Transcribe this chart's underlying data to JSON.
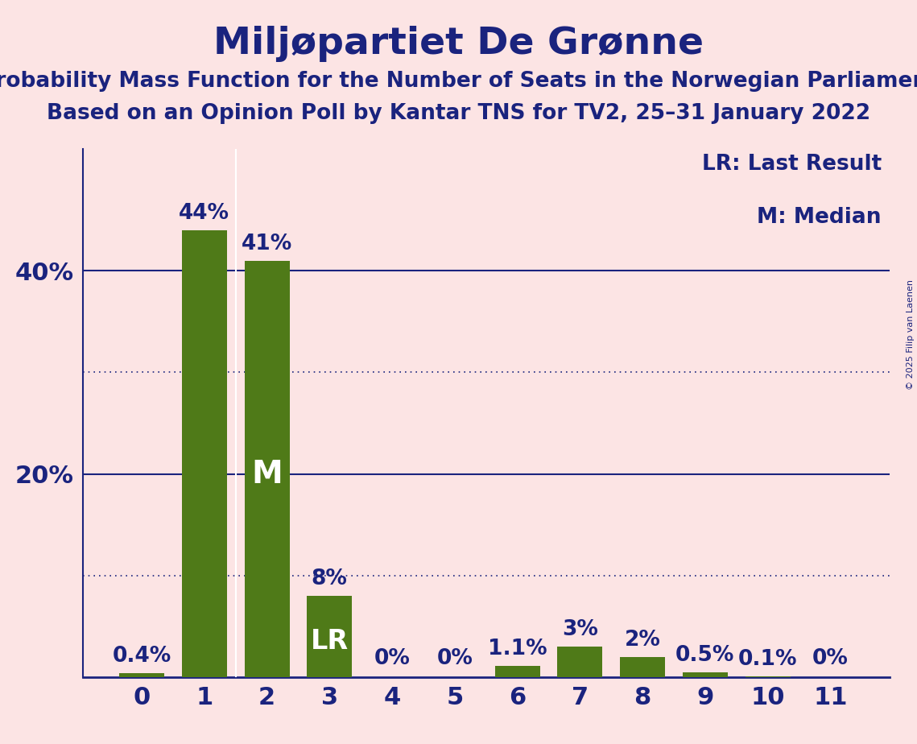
{
  "title": "Miljøpartiet De Grønne",
  "subtitle1": "Probability Mass Function for the Number of Seats in the Norwegian Parliament",
  "subtitle2": "Based on an Opinion Poll by Kantar TNS for TV2, 25–31 January 2022",
  "copyright": "© 2025 Filip van Laenen",
  "categories": [
    0,
    1,
    2,
    3,
    4,
    5,
    6,
    7,
    8,
    9,
    10,
    11
  ],
  "values": [
    0.4,
    44,
    41,
    8,
    0,
    0,
    1.1,
    3,
    2,
    0.5,
    0.1,
    0
  ],
  "labels": [
    "0.4%",
    "44%",
    "41%",
    "8%",
    "0%",
    "0%",
    "1.1%",
    "3%",
    "2%",
    "0.5%",
    "0.1%",
    "0%"
  ],
  "bar_color": "#4f7a18",
  "median_bar": 2,
  "lr_bar": 3,
  "median_label": "M",
  "lr_label": "LR",
  "background_color": "#fce4e4",
  "axis_color": "#1a237e",
  "text_color": "#1a237e",
  "title_fontsize": 34,
  "subtitle_fontsize": 19,
  "tick_fontsize": 22,
  "label_fontsize": 19,
  "yticks": [
    20,
    40
  ],
  "ytick_labels": [
    "20%",
    "40%"
  ],
  "ylim": [
    0,
    52
  ],
  "dotted_lines": [
    10,
    30
  ],
  "solid_lines": [
    20,
    40
  ],
  "legend_text": [
    "LR: Last Result",
    "M: Median"
  ],
  "legend_fontsize": 19,
  "inner_label_fontsize_M": 28,
  "inner_label_fontsize_LR": 24
}
